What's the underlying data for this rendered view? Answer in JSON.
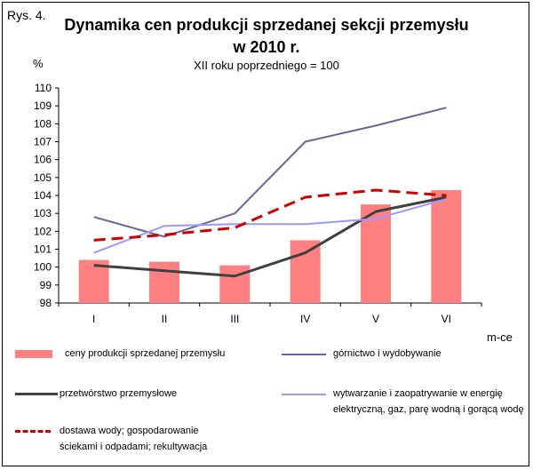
{
  "figure_label": "Rys. 4.",
  "chart_data": {
    "type": "bar+line",
    "title_line1": "Dynamika cen produkcji sprzedanej sekcji przemysłu",
    "title_line2": "w 2010 r.",
    "subtitle": "XII roku poprzedniego = 100",
    "ylabel": "%",
    "xlabel": "m-ce",
    "ylim": [
      98,
      110
    ],
    "yticks": [
      98,
      99,
      100,
      101,
      102,
      103,
      104,
      105,
      106,
      107,
      108,
      109,
      110
    ],
    "categories": [
      "I",
      "II",
      "III",
      "IV",
      "V",
      "VI"
    ],
    "grid": false,
    "legend_position": "bottom",
    "series": [
      {
        "name": "ceny produkcji sprzedanej przemysłu",
        "type": "bar",
        "color": "#ff8080",
        "values": [
          100.4,
          100.3,
          100.1,
          101.5,
          103.5,
          104.3
        ]
      },
      {
        "name": "górnictwo i wydobywanie",
        "type": "line",
        "color": "#666699",
        "dash": "solid",
        "values": [
          102.8,
          101.7,
          103.0,
          107.0,
          107.9,
          108.9
        ]
      },
      {
        "name": "przetwórstwo przemysłowe",
        "type": "line",
        "color": "#404040",
        "dash": "solid",
        "values": [
          100.1,
          99.8,
          99.5,
          100.8,
          103.1,
          103.9
        ]
      },
      {
        "name": "wytwarzanie i zaopatrywanie w energię elektryczną, gaz, parę wodną i gorącą wodę",
        "type": "line",
        "color": "#9999ff",
        "dash": "solid",
        "values": [
          100.8,
          102.3,
          102.4,
          102.4,
          102.7,
          103.8
        ]
      },
      {
        "name": "dostawa wody; gospodarowanie ściekami i odpadami; rekultywacja",
        "type": "line",
        "color": "#cc0000",
        "dash": "dashed",
        "values": [
          101.5,
          101.8,
          102.2,
          103.9,
          104.3,
          104.0
        ]
      }
    ]
  },
  "legend": {
    "bar_label": "ceny produkcji sprzedanej przemysłu",
    "mining_label": "górnictwo i wydobywanie",
    "manufacturing_label": "przetwórstwo przemysłowe",
    "energy_label": "wytwarzanie i zaopatrywanie w energię\nelektryczną, gaz, parę wodną i gorącą wodę",
    "water_label": "dostawa wody; gospodarowanie\nściekami i odpadami; rekultywacja"
  }
}
